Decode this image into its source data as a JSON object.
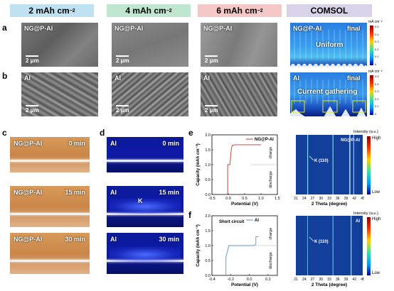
{
  "headers": [
    "2 mAh cm",
    "4 mAh cm",
    "6 mAh cm",
    "COMSOL"
  ],
  "header_sup": "−2",
  "header_colors": [
    "#bfe2f3",
    "#bfe6cf",
    "#f6c7c7",
    "#d9d2e9"
  ],
  "letters": {
    "a": "a",
    "b": "b",
    "c": "c",
    "d": "d",
    "e": "e",
    "f": "f"
  },
  "row_a_label": "NG@P-Al",
  "row_b_label": "Al",
  "scale_label": "2 μm",
  "comsol_a": {
    "label": "NG@P-Al",
    "final": "final",
    "text": "Uniform",
    "unit": "mA cm⁻²"
  },
  "comsol_b": {
    "label": "Al",
    "final": "final",
    "text": "Current gathering",
    "unit": "mA cm⁻²"
  },
  "colorbar_ticks": [
    "0.5",
    "0.4",
    "0.3",
    "0.2",
    "0.1",
    "0"
  ],
  "photos_c": [
    {
      "label": "NG@P-Al",
      "time": "0 min"
    },
    {
      "label": "NG@P-Al",
      "time": "15 min"
    },
    {
      "label": "NG@P-Al",
      "time": "30 min"
    }
  ],
  "photos_d": [
    {
      "label": "Al",
      "time": "0 min"
    },
    {
      "label": "Al",
      "time": "15 min",
      "annotation": "K"
    },
    {
      "label": "Al",
      "time": "30 min"
    }
  ],
  "plot_e": {
    "ylabel": "Capacity (mAh cm⁻²)",
    "xlabel": "Potential (V)",
    "legend": "NG@P-Al",
    "charge": "charge",
    "discharge": "discharge",
    "yticks": [
      "0.0",
      "0.5",
      "1.0",
      "1.5",
      "2.0"
    ],
    "xticks": [
      "-0.5",
      "0.0",
      "0.5",
      "1.0",
      "1.5"
    ]
  },
  "plot_f": {
    "ylabel": "Capacity (mAh cm⁻²)",
    "xlabel": "Potential (V)",
    "legend": "Al",
    "annotation": "Short circuit",
    "charge": "charge",
    "discharge": "discharge",
    "yticks": [
      "0.0",
      "0.5",
      "1.0",
      "1.5",
      "2.0"
    ],
    "xticks": [
      "-0.4",
      "-0.2",
      "0.0",
      "0.2"
    ]
  },
  "xrd_e": {
    "label": "NG@P-Al",
    "peak": "K (110)",
    "xlabel": "2 Theta (degree)",
    "xticks": [
      "21",
      "24",
      "27",
      "30",
      "33",
      "36",
      "39",
      "42",
      "45"
    ]
  },
  "xrd_f": {
    "label": "Al",
    "peak": "K (110)",
    "xlabel": "2 Theta (degree)",
    "xticks": [
      "21",
      "24",
      "27",
      "30",
      "33",
      "36",
      "39",
      "42",
      "45"
    ]
  },
  "intensity": {
    "title": "Intensity (a.u.)",
    "high": "High",
    "low": "Low"
  },
  "chart_data": [
    {
      "type": "line",
      "xlabel": "Potential (V)",
      "ylabel": "Capacity (mAh cm⁻²)",
      "xlim": [
        -0.5,
        1.5
      ],
      "ylim": [
        0,
        2.0
      ],
      "series": [
        {
          "name": "NG@P-Al",
          "x": [
            -0.02,
            -0.02,
            0.05,
            0.09,
            0.12,
            0.2,
            1.0
          ],
          "y": [
            0.0,
            1.0,
            1.0,
            1.5,
            1.65,
            1.67,
            1.67
          ]
        }
      ]
    },
    {
      "type": "line",
      "xlabel": "Potential (V)",
      "ylabel": "Capacity (mAh cm⁻²)",
      "xlim": [
        -0.4,
        0.3
      ],
      "ylim": [
        0,
        2.0
      ],
      "series": [
        {
          "name": "Al",
          "x": [
            -0.25,
            -0.25,
            -0.22,
            -0.18,
            0.05,
            0.07,
            0.07,
            0.1
          ],
          "y": [
            0.0,
            0.6,
            1.0,
            1.0,
            1.0,
            1.05,
            1.3,
            1.3
          ]
        }
      ]
    }
  ]
}
